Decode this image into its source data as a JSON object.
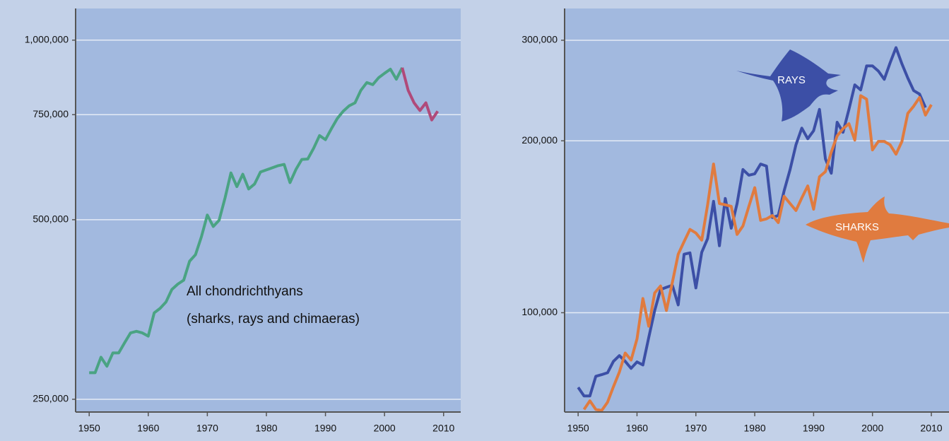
{
  "chart_data": [
    {
      "type": "line",
      "log_y": true,
      "grid": true,
      "annotation": [
        "All chondrichthyans",
        "(sharks, rays and chimaeras)"
      ],
      "xlim": [
        1947.7,
        2012.9
      ],
      "ylim": [
        238000,
        1130000
      ],
      "xticks": [
        1950,
        1960,
        1970,
        1980,
        1990,
        2000,
        2010
      ],
      "yticks": [
        {
          "value": 250000,
          "label": "250,000"
        },
        {
          "value": 500000,
          "label": "500,000"
        },
        {
          "value": 750000,
          "label": "750,000"
        },
        {
          "value": 1000000,
          "label": "1,000,000"
        }
      ],
      "x": [
        1950,
        1951,
        1952,
        1953,
        1954,
        1955,
        1956,
        1957,
        1958,
        1959,
        1960,
        1961,
        1962,
        1963,
        1964,
        1965,
        1966,
        1967,
        1968,
        1969,
        1970,
        1971,
        1972,
        1973,
        1974,
        1975,
        1976,
        1977,
        1978,
        1979,
        1980,
        1981,
        1982,
        1983,
        1984,
        1985,
        1986,
        1987,
        1988,
        1989,
        1990,
        1991,
        1992,
        1993,
        1994,
        1995,
        1996,
        1997,
        1998,
        1999,
        2000,
        2001,
        2002,
        2003,
        2004,
        2005,
        2006,
        2007,
        2008,
        2009
      ],
      "series": [
        {
          "color": "#4aa383",
          "values": [
            277000,
            277000,
            294000,
            284000,
            299000,
            299000,
            311000,
            323000,
            325000,
            323000,
            319000,
            349000,
            355000,
            364000,
            382000,
            390000,
            396000,
            426000,
            437000,
            468000,
            509000,
            487000,
            499000,
            544000,
            599000,
            568000,
            596000,
            563000,
            574000,
            601000,
            606000,
            611000,
            616000,
            619000,
            577000,
            607000,
            631000,
            632000,
            659000,
            692000,
            681000,
            710000,
            739000,
            760000,
            776000,
            785000,
            824000,
            849000,
            842000,
            865000,
            880000,
            894000,
            860000,
            899000,
            null,
            null,
            null,
            null,
            null,
            null
          ]
        },
        {
          "color": "#b04a7a",
          "values": [
            null,
            null,
            null,
            null,
            null,
            null,
            null,
            null,
            null,
            null,
            null,
            null,
            null,
            null,
            null,
            null,
            null,
            null,
            null,
            null,
            null,
            null,
            null,
            null,
            null,
            null,
            null,
            null,
            null,
            null,
            null,
            null,
            null,
            null,
            null,
            null,
            null,
            null,
            null,
            null,
            null,
            null,
            null,
            null,
            null,
            null,
            null,
            null,
            null,
            null,
            null,
            null,
            null,
            899000,
            824000,
            785000,
            762000,
            785000,
            735000,
            760000
          ]
        }
      ]
    },
    {
      "type": "line",
      "log_y": true,
      "grid": true,
      "xlim": [
        1947.7,
        2013
      ],
      "ylim": [
        67000,
        341000
      ],
      "xticks": [
        1950,
        1960,
        1970,
        1980,
        1990,
        2000,
        2010
      ],
      "yticks": [
        {
          "value": 100000,
          "label": "100,000"
        },
        {
          "value": 200000,
          "label": "200,000"
        },
        {
          "value": 300000,
          "label": "300,000"
        }
      ],
      "x": [
        1950,
        1951,
        1952,
        1953,
        1954,
        1955,
        1956,
        1957,
        1958,
        1959,
        1960,
        1961,
        1962,
        1963,
        1964,
        1965,
        1966,
        1967,
        1968,
        1969,
        1970,
        1971,
        1972,
        1973,
        1974,
        1975,
        1976,
        1977,
        1978,
        1979,
        1980,
        1981,
        1982,
        1983,
        1984,
        1985,
        1986,
        1987,
        1988,
        1989,
        1990,
        1991,
        1992,
        1993,
        1994,
        1995,
        1996,
        1997,
        1998,
        1999,
        2000,
        2001,
        2002,
        2003,
        2004,
        2005,
        2006,
        2007,
        2008,
        2009,
        2010
      ],
      "series": [
        {
          "name": "RAYS",
          "color": "#3c4fa6",
          "values": [
            74000,
            71500,
            71500,
            77400,
            77900,
            78500,
            82200,
            84100,
            82200,
            79900,
            82000,
            81000,
            90500,
            100900,
            109800,
            110800,
            111700,
            103200,
            126600,
            127300,
            110500,
            127600,
            134800,
            156700,
            131000,
            158500,
            140600,
            155300,
            178100,
            174100,
            175100,
            182100,
            180600,
            146800,
            148000,
            163500,
            178100,
            196800,
            210500,
            201700,
            208300,
            227000,
            185900,
            175500,
            215500,
            207000,
            227000,
            250600,
            245600,
            270500,
            270500,
            265000,
            256300,
            274000,
            291200,
            272700,
            257600,
            244900,
            241500,
            228700,
            null
          ]
        },
        {
          "name": "SHARKS",
          "color": "#e07b3f",
          "values": [
            null,
            67700,
            70100,
            67700,
            67400,
            69700,
            74200,
            78700,
            85000,
            82600,
            90000,
            105900,
            94700,
            108300,
            111400,
            100900,
            113000,
            126600,
            133200,
            139900,
            137900,
            134000,
            154500,
            182100,
            155300,
            154500,
            153600,
            137100,
            141900,
            153600,
            165600,
            145100,
            146000,
            148000,
            143800,
            159900,
            155300,
            151000,
            158900,
            166700,
            151800,
            173000,
            176600,
            191100,
            204000,
            210000,
            214300,
            200600,
            239900,
            236500,
            192800,
            199500,
            199500,
            196800,
            189500,
            199500,
            223400,
            229900,
            238100,
            221900,
            231400
          ]
        }
      ]
    }
  ]
}
